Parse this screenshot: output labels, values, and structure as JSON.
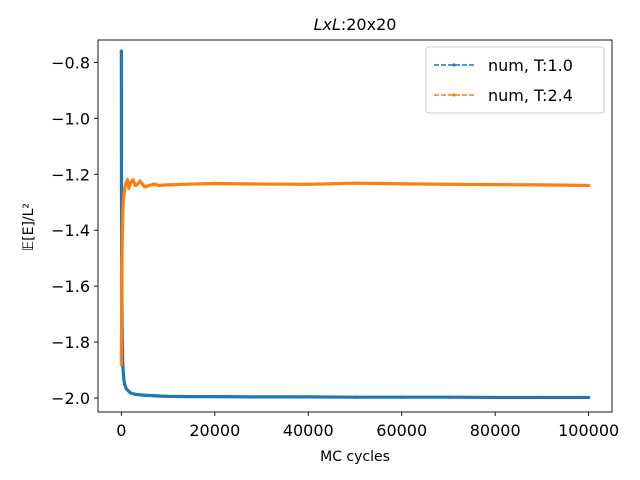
{
  "chart_data": {
    "type": "line",
    "title": {
      "var": "LxL",
      "value": ":20x20"
    },
    "xlabel": "MC cycles",
    "ylabel": "𝔼[E]/L²",
    "xlim": [
      -5000,
      105000
    ],
    "ylim": [
      -2.05,
      -0.72
    ],
    "xticks": [
      0,
      20000,
      40000,
      60000,
      80000,
      100000
    ],
    "xtick_labels": [
      "0",
      "20000",
      "40000",
      "60000",
      "80000",
      "100000"
    ],
    "yticks": [
      -2.0,
      -1.8,
      -1.6,
      -1.4,
      -1.2,
      -1.0,
      -0.8
    ],
    "ytick_labels": [
      "−2.0",
      "−1.8",
      "−1.6",
      "−1.4",
      "−1.2",
      "−1.0",
      "−0.8"
    ],
    "grid": false,
    "legend_position": "upper right",
    "series": [
      {
        "name": "num, T:1.0",
        "color": "#1f77b4",
        "x": [
          0,
          20,
          50,
          100,
          200,
          300,
          500,
          700,
          1000,
          1500,
          2000,
          3000,
          5000,
          7000,
          10000,
          15000,
          20000,
          30000,
          40000,
          50000,
          60000,
          70000,
          80000,
          90000,
          100000
        ],
        "y": [
          -0.76,
          -1.25,
          -1.45,
          -1.62,
          -1.8,
          -1.88,
          -1.93,
          -1.95,
          -1.965,
          -1.975,
          -1.982,
          -1.987,
          -1.99,
          -1.992,
          -1.994,
          -1.995,
          -1.995,
          -1.996,
          -1.996,
          -1.997,
          -1.997,
          -1.997,
          -1.998,
          -1.998,
          -1.998
        ]
      },
      {
        "name": "num, T:2.4",
        "color": "#ff7f0e",
        "x": [
          0,
          50,
          100,
          200,
          300,
          400,
          500,
          700,
          1000,
          1300,
          1600,
          2000,
          2500,
          3000,
          3500,
          4000,
          5000,
          6000,
          7000,
          8000,
          10000,
          15000,
          20000,
          30000,
          40000,
          50000,
          60000,
          70000,
          80000,
          90000,
          100000
        ],
        "y": [
          -1.88,
          -1.7,
          -1.55,
          -1.42,
          -1.34,
          -1.3,
          -1.28,
          -1.25,
          -1.23,
          -1.22,
          -1.25,
          -1.23,
          -1.22,
          -1.24,
          -1.235,
          -1.225,
          -1.245,
          -1.24,
          -1.235,
          -1.24,
          -1.238,
          -1.235,
          -1.233,
          -1.235,
          -1.236,
          -1.232,
          -1.234,
          -1.236,
          -1.237,
          -1.238,
          -1.24
        ]
      }
    ]
  }
}
